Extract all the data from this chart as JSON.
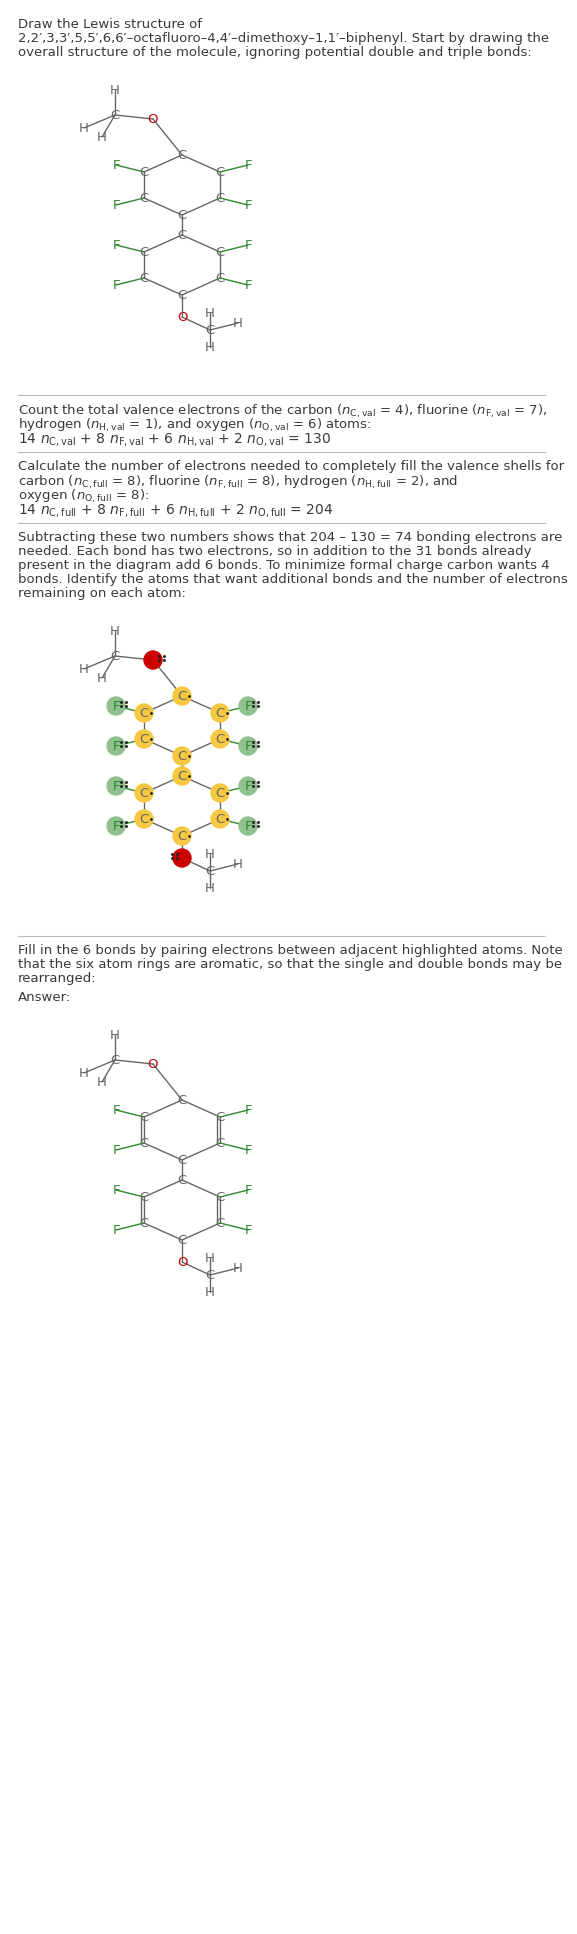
{
  "bg_color": "#ffffff",
  "text_color": "#3a3a3a",
  "C_color": "#666666",
  "F_color": "#2d8a2d",
  "O_color": "#cc0000",
  "H_color": "#666666",
  "bond_color": "#666666",
  "C_highlight": "#f5c842",
  "F_highlight": "#90c090",
  "O_highlight": "#cc0000",
  "title_line1": "Draw the Lewis structure of",
  "title_line2": "2,2′,3,3′,5,5′,6,6′–octafluoro–4,4′–dimethoxy–1,1′–biphenyl. Start by drawing the",
  "title_line3": "overall structure of the molecule, ignoring potential double and triple bonds:",
  "s2_line1": "Count the total valence electrons of the carbon (",
  "s2_line2": "hydrogen (",
  "s2_line3": "14 ",
  "s3_line1": "Calculate the number of electrons needed to completely fill the valence shells for",
  "s3_line2": "carbon (",
  "s3_line3": "oxygen (",
  "s3_line4": "14 ",
  "s4_line1": "Subtracting these two numbers shows that 204 – 130 = 74 bonding electrons are",
  "s4_line2": "needed. Each bond has two electrons, so in addition to the 31 bonds already",
  "s4_line3": "present in the diagram add 6 bonds. To minimize formal charge carbon wants 4",
  "s4_line4": "bonds. Identify the atoms that want additional bonds and the number of electrons",
  "s4_line5": "remaining on each atom:",
  "s5_line1": "Fill in the 6 bonds by pairing electrons between adjacent highlighted atoms. Note",
  "s5_line2": "that the six atom rings are aromatic, so that the single and double bonds may be",
  "s5_line3": "rearranged:",
  "answer": "Answer:"
}
